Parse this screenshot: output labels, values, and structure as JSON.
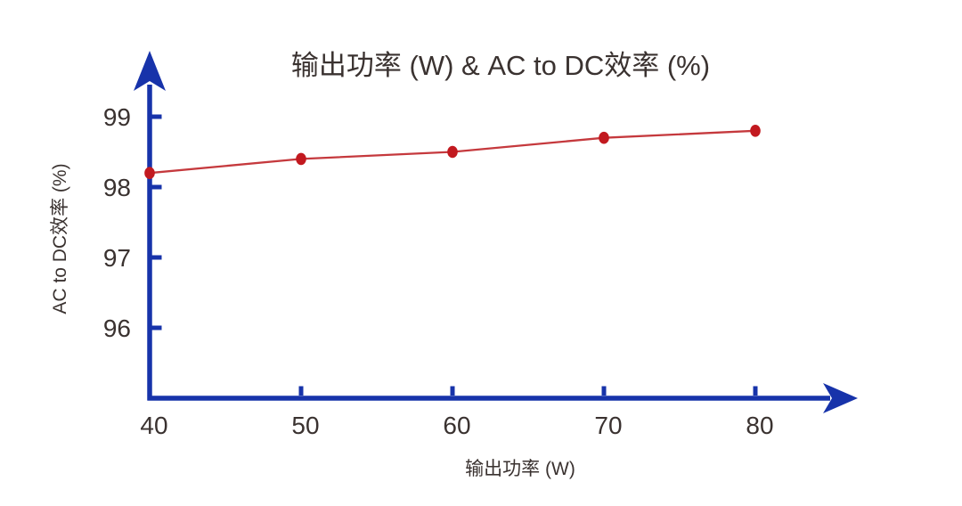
{
  "chart_data": {
    "type": "line",
    "title": "输出功率 (W) & AC to DC效率 (%)",
    "xlabel": "输出功率 (W)",
    "ylabel": "AC to DC效率 (%)",
    "x": [
      40,
      50,
      60,
      70,
      80
    ],
    "series": [
      {
        "name": "AC to DC效率",
        "values": [
          98.2,
          98.4,
          98.5,
          98.7,
          98.8
        ]
      }
    ],
    "xticks": [
      40,
      50,
      60,
      70,
      80
    ],
    "yticks": [
      96,
      97,
      98,
      99
    ],
    "xlim": [
      40,
      86
    ],
    "ylim": [
      95,
      99.9
    ],
    "grid": false,
    "legend_position": "none",
    "marker_shape": "dot",
    "colors": {
      "axis": "#1733aa",
      "line": "#c5393d",
      "marker": "#c2191f",
      "text": "#3a3230",
      "background": "#ffffff"
    }
  }
}
